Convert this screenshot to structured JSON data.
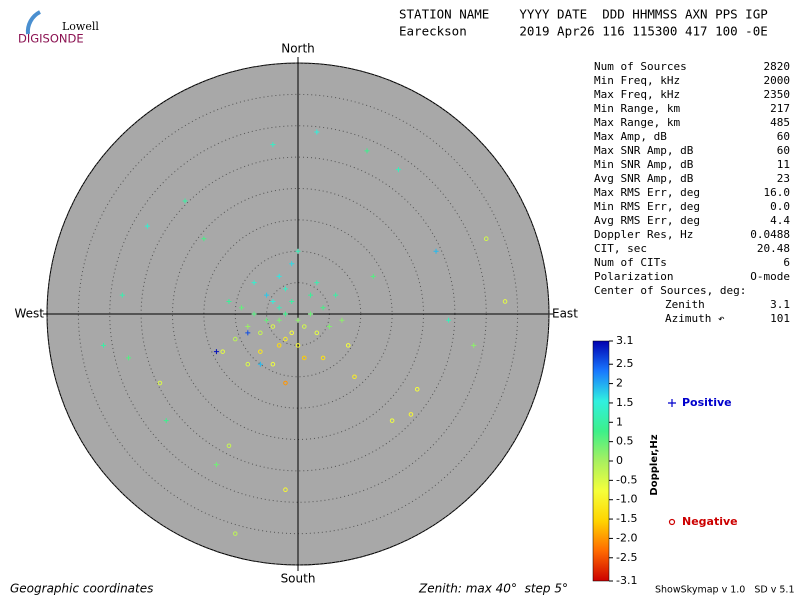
{
  "logo": {
    "top": "Lowell",
    "bottom": "DIGISONDE"
  },
  "header": {
    "line1": "STATION NAME    YYYY DATE  DDD HHMMSS AXN PPS IGP",
    "line2": "Eareckson       2019 Apr26 116 115300 417 100 -0E"
  },
  "stats": {
    "rows": [
      [
        "Num of Sources",
        "2820"
      ],
      [
        "Min Freq, kHz",
        "2000"
      ],
      [
        "Max Freq, kHz",
        "2350"
      ],
      [
        "Min Range, km",
        "217"
      ],
      [
        "Max Range, km",
        "485"
      ],
      [
        "Max Amp, dB",
        "60"
      ],
      [
        "Max SNR Amp, dB",
        "60"
      ],
      [
        "Min SNR Amp, dB",
        "11"
      ],
      [
        "Avg SNR Amp, dB",
        "23"
      ],
      [
        "Max RMS Err, deg",
        "16.0"
      ],
      [
        "Min RMS Err, deg",
        "0.0"
      ],
      [
        "Avg RMS Err, deg",
        "4.4"
      ],
      [
        "Doppler Res, Hz",
        "0.0488"
      ],
      [
        "CIT, sec",
        "20.48"
      ],
      [
        "Num of CITs",
        "6"
      ],
      [
        "Polarization",
        "O-mode"
      ]
    ],
    "center_title": "Center of Sources, deg:",
    "center_rows": [
      [
        "Zenith",
        "3.1"
      ],
      [
        "Azimuth ↶",
        "101"
      ]
    ]
  },
  "footer": {
    "left": "Geographic coordinates",
    "middle": "Zenith: max 40°  step 5°",
    "right": "ShowSkymap v 1.0   SD v 5.1"
  },
  "chart_data": {
    "type": "skymap",
    "directions": {
      "north": "North",
      "south": "South",
      "east": "East",
      "west": "West"
    },
    "rlim": [
      0,
      40
    ],
    "rticks": [
      5,
      10,
      15,
      20,
      25,
      30,
      35,
      40
    ],
    "colorbar_label": "Doppler,Hz",
    "clim": [
      -3.1,
      3.1
    ],
    "cticks": [
      3.1,
      2.5,
      2,
      1.5,
      1,
      0.5,
      0,
      -0.5,
      {
        "value": -1,
        "label": "-1.0"
      },
      -1.5,
      {
        "value": -2,
        "label": "-2.0"
      },
      -2.5,
      -3.1
    ],
    "colormap": [
      "#cc0000",
      "#ff6a00",
      "#ffd400",
      "#f5ff3a",
      "#a8f060",
      "#3cf08a",
      "#30f0e0",
      "#1878ff",
      "#0000b0"
    ],
    "legend": {
      "positive": "Positive",
      "negative": "Negative",
      "positive_color": "#0000cc",
      "negative_color": "#cc0000"
    },
    "x": [
      -3,
      -2,
      -4,
      -1,
      -3,
      -5,
      -2,
      0,
      -6,
      -4,
      -1,
      1,
      -7,
      -3,
      2,
      -5,
      -2,
      0,
      3,
      -8,
      -6,
      2,
      -3,
      4,
      -9,
      1,
      -4,
      5,
      -10,
      3,
      -7,
      6,
      -1,
      7,
      -11,
      4,
      -8,
      0,
      8,
      -12,
      -27,
      -22,
      -24,
      -18,
      -4,
      3,
      11,
      16,
      22,
      30,
      33,
      28,
      18,
      15,
      -11,
      -13,
      -2,
      -10,
      -21,
      -28,
      -31,
      -6,
      -8,
      -13,
      19,
      24,
      12,
      -15,
      9,
      -2
    ],
    "y": [
      -1,
      0,
      -2,
      -3,
      1,
      -1,
      -4,
      -1,
      -3,
      2,
      2,
      -2,
      0,
      -5,
      0,
      3,
      4,
      -5,
      -3,
      -2,
      -6,
      3,
      6,
      1,
      1,
      -7,
      -8,
      -2,
      -4,
      5,
      5,
      3,
      8,
      -1,
      2,
      -7,
      -8,
      10,
      -5,
      -6,
      -7,
      -11,
      14,
      18,
      27,
      29,
      26,
      23,
      10,
      12,
      2,
      -5,
      -16,
      -17,
      -21,
      -24,
      -28,
      -35,
      -17,
      3,
      -5,
      -8,
      -3,
      -6,
      -12,
      -1,
      6,
      12,
      -10,
      -11
    ],
    "doppler": [
      0.3,
      0.8,
      -0.5,
      -0.8,
      1.2,
      0.5,
      -1.1,
      0.2,
      -0.3,
      1.5,
      1,
      -0.4,
      0.6,
      -1.4,
      0.4,
      1.8,
      1.3,
      -0.9,
      -0.6,
      0.1,
      -1.2,
      0.9,
      1.6,
      0.7,
      0.5,
      -1.6,
      -0.7,
      0.3,
      -0.2,
      1.1,
      1.4,
      1,
      1.7,
      0.2,
      0.9,
      -1.3,
      -0.5,
      1.2,
      -0.8,
      -0.6,
      0.6,
      -0.5,
      1.4,
      1,
      1.3,
      1.5,
      0.8,
      1.2,
      1.9,
      -0.4,
      -0.6,
      0.2,
      -0.9,
      -0.7,
      -0.3,
      0.4,
      -0.9,
      -0.2,
      0.8,
      1.1,
      1,
      1.9,
      2.6,
      3,
      -0.8,
      1.2,
      0.6,
      0.7,
      -1.1,
      -2
    ]
  }
}
